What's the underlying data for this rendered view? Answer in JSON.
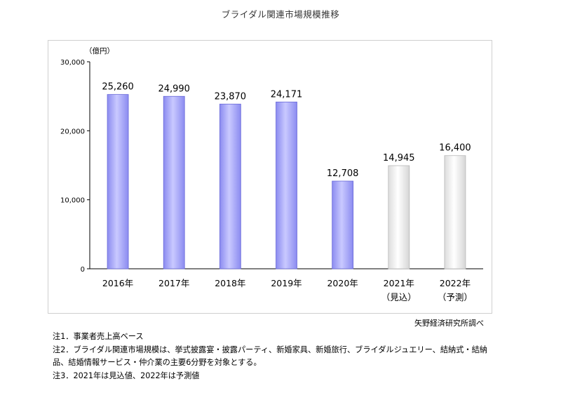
{
  "title": "ブライダル関連市場規模推移",
  "source": "矢野経済研究所調べ",
  "notes": [
    "注1．事業者売上高ベース",
    "注2．ブライダル関連市場規模は、挙式披露宴・披露パーティ、新婚家具、新婚旅行、ブライダルジュエリー、結納式・結納品、結婚情報サービス・仲介業の主要6分野を対象とする。",
    "注3．2021年は見込値、2022年は予測値"
  ],
  "colors": {
    "actual_bar": "#8b8bf0",
    "actual_bar_light": "#c9c9ff",
    "forecast_bar": "#f4f4f4",
    "forecast_bar_edge": "#b8b8b8"
  },
  "chart_data": {
    "type": "bar",
    "ylabel": "（億円）",
    "ylim": [
      0,
      30000
    ],
    "yticks": [
      "0",
      "10,000",
      "20,000",
      "30,000"
    ],
    "ytick_values": [
      0,
      10000,
      20000,
      30000
    ],
    "categories": [
      "2016年",
      "2017年",
      "2018年",
      "2019年",
      "2020年",
      "2021年",
      "2022年"
    ],
    "category_sublabels": [
      "",
      "",
      "",
      "",
      "",
      "（見込）",
      "（予測）"
    ],
    "values": [
      25260,
      24990,
      23870,
      24171,
      12708,
      14945,
      16400
    ],
    "value_labels": [
      "25,260",
      "24,990",
      "23,870",
      "24,171",
      "12,708",
      "14,945",
      "16,400"
    ],
    "bar_kind": [
      "actual",
      "actual",
      "actual",
      "actual",
      "actual",
      "forecast",
      "forecast"
    ],
    "grid": false,
    "legend": "none"
  }
}
